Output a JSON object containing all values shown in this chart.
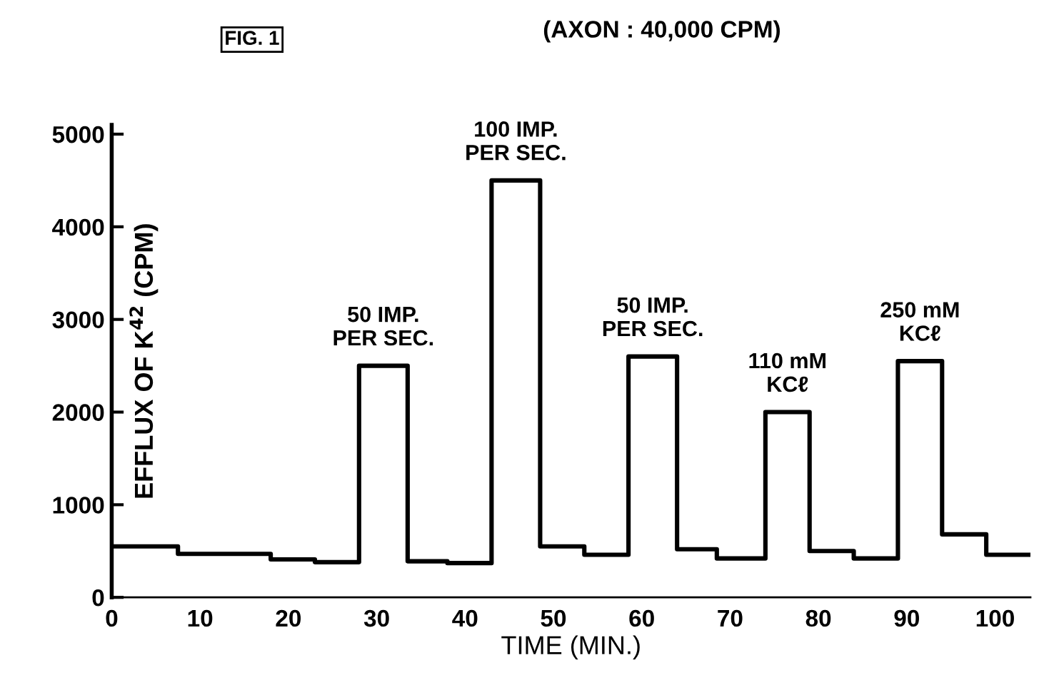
{
  "chart_data": {
    "type": "step",
    "xlabel": "TIME (MIN.)",
    "ylabel": "EFFLUX OF K$^{42}$ (CPM)",
    "x": [
      0,
      7.5,
      18,
      23,
      28,
      33.5,
      38,
      43,
      48.5,
      53.5,
      58.5,
      64,
      68.5,
      74,
      79,
      84,
      89,
      94,
      99,
      104
    ],
    "series": [
      {
        "color": "#000000",
        "values": [
          550,
          470,
          410,
          380,
          2500,
          390,
          370,
          4500,
          550,
          460,
          2600,
          520,
          420,
          2000,
          500,
          420,
          2550,
          680,
          460,
          460
        ]
      }
    ],
    "xlim": [
      0,
      104
    ],
    "ylim": [
      0,
      5100
    ],
    "xticks": [
      0,
      10,
      20,
      30,
      40,
      50,
      60,
      70,
      80,
      90,
      100
    ],
    "yticks": [
      0,
      1000,
      2000,
      3000,
      4000,
      5000
    ],
    "grid": false,
    "legend": false,
    "annotations": [
      "FIG. 1",
      "(AXON : 40,000 CPM)",
      {
        "text": "50 IMP.\nPER SEC.",
        "x": 30.75,
        "y": 2500
      },
      {
        "text": "100 IMP.\nPER SEC.",
        "x": 45.75,
        "y": 4500
      },
      {
        "text": "50 IMP.\nPER SEC.",
        "x": 61.25,
        "y": 2600
      },
      {
        "text": "110 mM\nKCℓ",
        "x": 76.5,
        "y": 2000
      },
      {
        "text": "250 mM\nKCℓ",
        "x": 91.5,
        "y": 2550
      }
    ]
  }
}
